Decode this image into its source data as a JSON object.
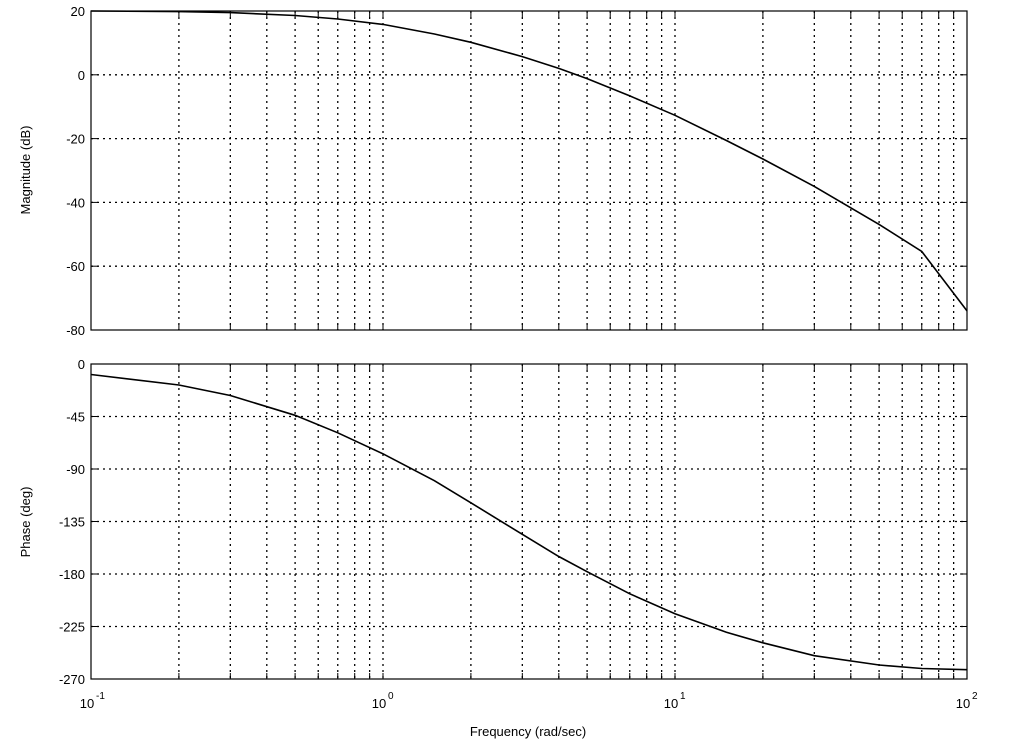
{
  "chart_data": [
    {
      "type": "line",
      "name": "magnitude-plot",
      "ylabel": "Magnitude (dB)",
      "xscale": "log",
      "xlim": [
        0.1,
        100
      ],
      "ylim": [
        -80,
        20
      ],
      "yticks": [
        20,
        0,
        -20,
        -40,
        -60,
        -80
      ],
      "ytick_labels": [
        "20",
        "0",
        "-20",
        "-40",
        "-60",
        "-80"
      ],
      "grid": true,
      "series": [
        {
          "x": [
            0.1,
            0.2,
            0.3,
            0.5,
            0.7,
            1,
            1.5,
            2,
            3,
            4,
            5,
            7,
            10,
            15,
            20,
            30,
            50,
            70,
            100
          ],
          "y": [
            20,
            19.8,
            19.5,
            18.6,
            17.5,
            15.8,
            12.8,
            10.2,
            5.7,
            2.0,
            -1.2,
            -6.6,
            -12.7,
            -20.6,
            -26.4,
            -35,
            -46.9,
            -55.4,
            -74
          ]
        }
      ]
    },
    {
      "type": "line",
      "name": "phase-plot",
      "ylabel": "Phase (deg)",
      "xlabel": "Frequency (rad/sec)",
      "xscale": "log",
      "xlim": [
        0.1,
        100
      ],
      "ylim": [
        -270,
        0
      ],
      "yticks": [
        0,
        -45,
        -90,
        -135,
        -180,
        -225,
        -270
      ],
      "ytick_labels": [
        "0",
        "-45",
        "-90",
        "-135",
        "-180",
        "-225",
        "-270"
      ],
      "xticks": [
        0.1,
        1,
        10,
        100
      ],
      "xtick_bases": [
        "10",
        "10",
        "10",
        "10"
      ],
      "xtick_exponents": [
        "-1",
        "0",
        "1",
        "2"
      ],
      "grid": true,
      "series": [
        {
          "x": [
            0.1,
            0.2,
            0.3,
            0.5,
            0.7,
            1,
            1.5,
            2,
            3,
            4,
            5,
            7,
            10,
            15,
            20,
            30,
            50,
            70,
            100
          ],
          "y": [
            -9,
            -18,
            -27,
            -44,
            -59,
            -77,
            -100,
            -119,
            -146,
            -165,
            -178,
            -197,
            -214,
            -230,
            -239,
            -250,
            -258,
            -261,
            -262
          ]
        }
      ]
    }
  ]
}
